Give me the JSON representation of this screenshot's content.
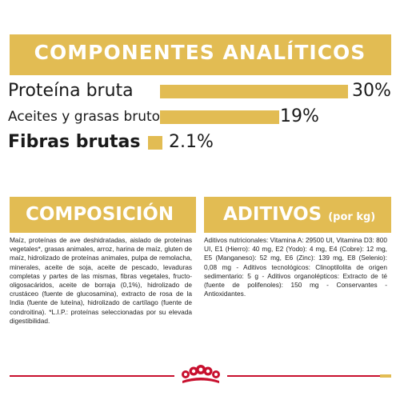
{
  "header": {
    "title": "COMPONENTES ANALÍTICOS"
  },
  "nutrients": [
    {
      "label": "Proteína bruta",
      "value": "30%",
      "percent": 30
    },
    {
      "label": "Aceites y grasas brutos",
      "value": "19%",
      "percent": 19
    },
    {
      "label": "Fibras brutas",
      "value": "2.1%",
      "percent": 2.1
    }
  ],
  "composition": {
    "title": "COMPOSICIÓN",
    "text": "Maíz, proteínas de ave deshidratadas, aislado de proteínas vegetales*, grasas animales, arroz, harina de maíz, gluten de maíz, hidrolizado de proteínas animales, pulpa de remolacha, minerales, aceite de soja, aceite de pescado, levaduras completas y partes de las mismas, fibras vegetales, fructo-oligosacáridos, aceite de borraja (0,1%), hidrolizado de crustáceo (fuente de glucosamina), extracto de rosa de la India (fuente de luteína), hidrolizado de cartílago (fuente de condroitina). *L.I.P.: proteínas seleccionadas por su elevada digestibilidad."
  },
  "additives": {
    "title": "ADITIVOS",
    "subtitle": "(por kg)",
    "text": "Aditivos nutricionales: Vitamina A: 29500 UI, Vitamina D3: 800 UI, E1 (Hierro): 40 mg, E2 (Yodo): 4 mg, E4 (Cobre): 12 mg, E5 (Manganeso): 52 mg, E6 (Zinc): 139 mg, E8 (Selenio): 0,08 mg - Aditivos tecnológicos: Clinoptilolita de origen sedimentario: 5 g - Aditivos organolépticos: Extracto de té (fuente de polifenoles): 150 mg - Conservantes - Antioxidantes."
  },
  "colors": {
    "accent": "#e2bc53",
    "brand_red": "#c8102e",
    "text": "#1a1a1a"
  },
  "footer": {
    "logo": "royal-canin-crown-logo"
  }
}
